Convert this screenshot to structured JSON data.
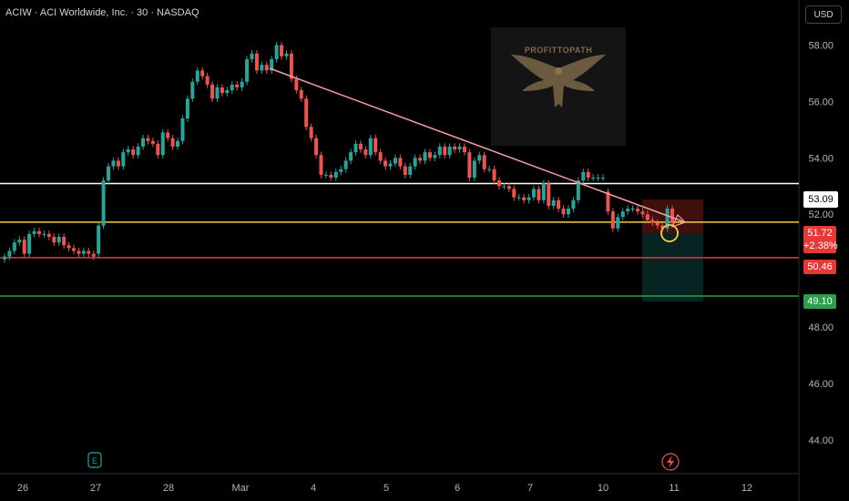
{
  "header": {
    "title": "ACIW · ACI Worldwide, Inc. · 30 · NASDAQ",
    "currency_button": "USD"
  },
  "watermark": {
    "brand": "PROFITTOPATH"
  },
  "colors": {
    "up": "#26a69a",
    "down": "#ef5350",
    "trendline": "#f4a0a0",
    "level_white": "#ffffff",
    "level_yellow": "#f4d03f",
    "level_red": "#e53935",
    "level_green": "#2e9e4a"
  },
  "icons": {
    "earnings_marker": "E-badge-icon",
    "event_marker": "lightning-icon"
  },
  "levels": {
    "resistance": 53.09,
    "current": 51.72,
    "stop": 50.46,
    "target": 49.1,
    "change_pct": "+2.38%",
    "labels": {
      "resistance": "53.09",
      "current": "51.72",
      "stop": "50.46",
      "target": "49.10"
    }
  },
  "chart_data": {
    "type": "candlestick",
    "title": "ACIW · ACI Worldwide, Inc. · 30 · NASDAQ",
    "ylim": [
      42.8,
      59.6
    ],
    "y_ticks": [
      "44.00",
      "46.00",
      "48.00",
      "50.00",
      "52.00",
      "54.00",
      "56.00",
      "58.00"
    ],
    "x_ticks": [
      "26",
      "27",
      "28",
      "Mar",
      "4",
      "5",
      "6",
      "7",
      "10",
      "11",
      "12"
    ],
    "grid": false,
    "candles": [
      [
        50.4,
        50.5
      ],
      [
        50.5,
        50.7
      ],
      [
        50.7,
        51.0
      ],
      [
        51.0,
        51.1
      ],
      [
        51.1,
        50.6
      ],
      [
        50.6,
        51.3
      ],
      [
        51.3,
        51.4
      ],
      [
        51.4,
        51.3
      ],
      [
        51.3,
        51.3
      ],
      [
        51.3,
        51.2
      ],
      [
        51.2,
        51.0
      ],
      [
        51.0,
        51.2
      ],
      [
        51.2,
        50.9
      ],
      [
        50.9,
        50.8
      ],
      [
        50.8,
        50.7
      ],
      [
        50.7,
        50.6
      ],
      [
        50.6,
        50.7
      ],
      [
        50.7,
        50.6
      ],
      [
        50.6,
        50.5
      ],
      [
        50.6,
        51.6
      ],
      [
        51.6,
        53.2
      ],
      [
        53.2,
        53.7
      ],
      [
        53.7,
        53.9
      ],
      [
        53.9,
        53.7
      ],
      [
        53.7,
        54.2
      ],
      [
        54.2,
        54.3
      ],
      [
        54.3,
        54.1
      ],
      [
        54.1,
        54.4
      ],
      [
        54.4,
        54.7
      ],
      [
        54.7,
        54.6
      ],
      [
        54.6,
        54.5
      ],
      [
        54.5,
        54.1
      ],
      [
        54.1,
        54.9
      ],
      [
        54.9,
        54.7
      ],
      [
        54.7,
        54.4
      ],
      [
        54.4,
        54.6
      ],
      [
        54.6,
        55.4
      ],
      [
        55.4,
        56.1
      ],
      [
        56.1,
        56.7
      ],
      [
        56.7,
        57.1
      ],
      [
        57.1,
        56.9
      ],
      [
        56.9,
        56.6
      ],
      [
        56.6,
        56.1
      ],
      [
        56.1,
        56.5
      ],
      [
        56.5,
        56.3
      ],
      [
        56.3,
        56.4
      ],
      [
        56.4,
        56.6
      ],
      [
        56.6,
        56.5
      ],
      [
        56.5,
        56.7
      ],
      [
        56.7,
        57.5
      ],
      [
        57.5,
        57.7
      ],
      [
        57.7,
        57.1
      ],
      [
        57.1,
        57.3
      ],
      [
        57.3,
        57.1
      ],
      [
        57.1,
        57.5
      ],
      [
        57.5,
        58.0
      ],
      [
        58.0,
        57.6
      ],
      [
        57.6,
        57.7
      ],
      [
        57.7,
        56.8
      ],
      [
        56.8,
        56.4
      ],
      [
        56.4,
        56.1
      ],
      [
        56.1,
        55.1
      ],
      [
        55.1,
        54.7
      ],
      [
        54.7,
        54.1
      ],
      [
        54.1,
        53.4
      ],
      [
        53.4,
        53.4
      ],
      [
        53.4,
        53.3
      ],
      [
        53.3,
        53.5
      ],
      [
        53.5,
        53.6
      ],
      [
        53.6,
        53.9
      ],
      [
        53.9,
        54.2
      ],
      [
        54.2,
        54.5
      ],
      [
        54.5,
        54.3
      ],
      [
        54.3,
        54.1
      ],
      [
        54.1,
        54.7
      ],
      [
        54.7,
        54.2
      ],
      [
        54.2,
        53.9
      ],
      [
        53.9,
        53.7
      ],
      [
        53.7,
        53.8
      ],
      [
        53.8,
        54.0
      ],
      [
        54.0,
        53.7
      ],
      [
        53.7,
        53.4
      ],
      [
        53.4,
        53.7
      ],
      [
        53.7,
        54.0
      ],
      [
        54.0,
        53.9
      ],
      [
        53.9,
        54.2
      ],
      [
        54.2,
        54.0
      ],
      [
        54.0,
        54.1
      ],
      [
        54.1,
        54.4
      ],
      [
        54.4,
        54.1
      ],
      [
        54.1,
        54.4
      ],
      [
        54.4,
        54.3
      ],
      [
        54.3,
        54.4
      ],
      [
        54.4,
        54.2
      ],
      [
        54.2,
        53.3
      ],
      [
        53.3,
        53.9
      ],
      [
        53.9,
        54.1
      ],
      [
        54.1,
        53.6
      ],
      [
        53.6,
        53.6
      ],
      [
        53.6,
        53.2
      ],
      [
        53.2,
        53.0
      ],
      [
        53.0,
        53.0
      ],
      [
        53.0,
        52.9
      ],
      [
        52.9,
        52.6
      ],
      [
        52.6,
        52.6
      ],
      [
        52.6,
        52.5
      ],
      [
        52.5,
        52.6
      ],
      [
        52.6,
        52.9
      ],
      [
        52.9,
        52.5
      ],
      [
        52.5,
        53.1
      ],
      [
        53.1,
        52.3
      ],
      [
        52.3,
        52.5
      ],
      [
        52.5,
        52.2
      ],
      [
        52.2,
        52.0
      ],
      [
        52.0,
        52.2
      ],
      [
        52.2,
        52.5
      ],
      [
        52.5,
        53.2
      ],
      [
        53.2,
        53.5
      ],
      [
        53.5,
        53.3
      ],
      [
        53.3,
        53.3
      ],
      [
        53.3,
        53.3
      ],
      [
        53.3,
        53.3
      ],
      [
        52.8,
        52.1
      ],
      [
        52.1,
        51.5
      ],
      [
        51.5,
        51.9
      ],
      [
        51.9,
        52.1
      ],
      [
        52.1,
        52.2
      ],
      [
        52.2,
        52.2
      ],
      [
        52.2,
        52.1
      ],
      [
        52.1,
        52.0
      ],
      [
        52.0,
        51.8
      ],
      [
        51.8,
        51.7
      ],
      [
        51.7,
        51.6
      ],
      [
        51.6,
        51.5
      ],
      [
        51.5,
        52.2
      ],
      [
        52.2,
        51.7
      ]
    ]
  }
}
